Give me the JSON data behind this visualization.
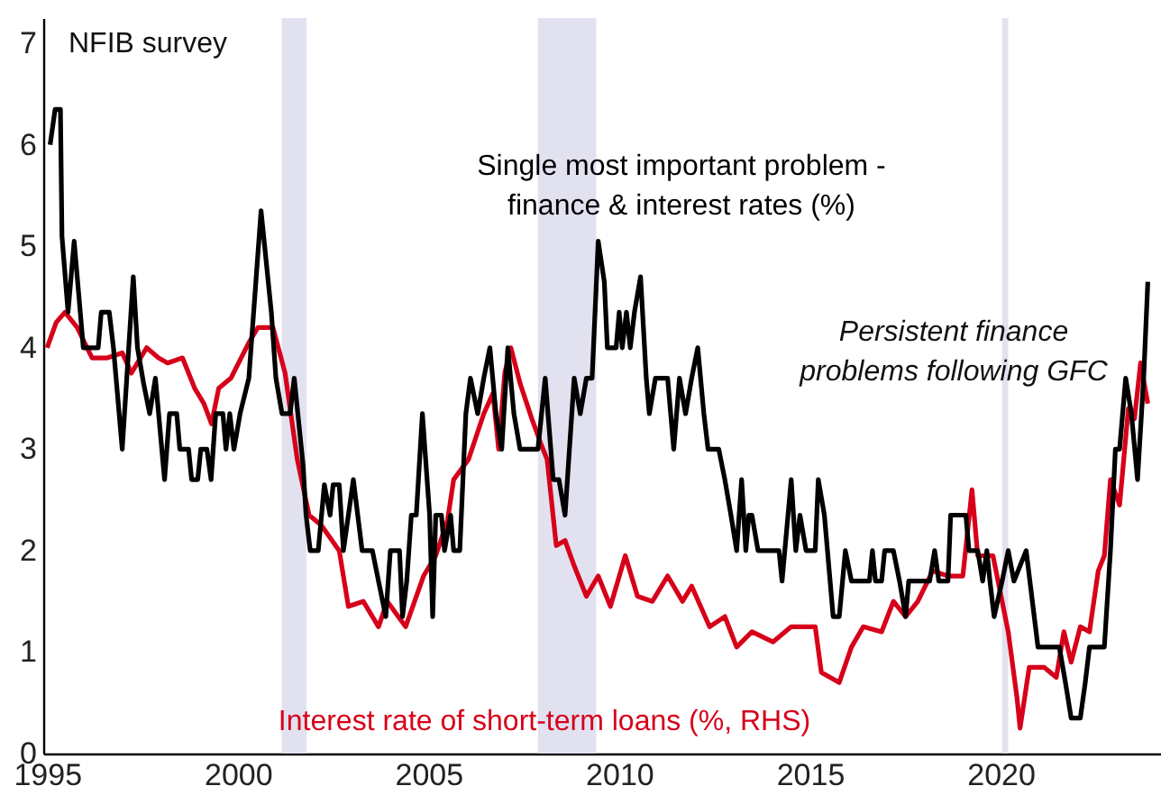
{
  "chart_data": {
    "type": "line",
    "title": "NFIB survey",
    "xlim": [
      1994.9,
      2024.3
    ],
    "xticks": [
      1995,
      2000,
      2005,
      2010,
      2015,
      2020
    ],
    "ylim": [
      0,
      7.25
    ],
    "yticks": [
      0,
      1,
      2,
      3,
      4,
      5,
      6,
      7
    ],
    "annotations": [
      "Persistent finance problems following GFC"
    ],
    "bands": [
      {
        "axis": "x",
        "from": 2001.15,
        "to": 2001.8,
        "color": "#e1e1f0"
      },
      {
        "axis": "x",
        "from": 2007.87,
        "to": 2009.4,
        "color": "#e1e1f0"
      },
      {
        "axis": "x",
        "from": 2020.04,
        "to": 2020.2,
        "color": "#e1e1f0"
      }
    ],
    "series": [
      {
        "name": "Interest rate of short-term loans (%, RHS)",
        "color": "#d7001a",
        "x": [
          1995.0,
          1995.24,
          1995.47,
          1995.79,
          1996.18,
          1996.58,
          1996.97,
          1997.21,
          1997.61,
          1997.92,
          1998.16,
          1998.55,
          1998.87,
          1999.11,
          1999.31,
          1999.5,
          1999.82,
          2000.29,
          2000.53,
          2000.92,
          2001.24,
          2001.56,
          2001.87,
          2002.19,
          2002.66,
          2002.9,
          2003.29,
          2003.69,
          2003.92,
          2004.4,
          2004.87,
          2005.19,
          2005.5,
          2005.66,
          2006.05,
          2006.45,
          2006.69,
          2006.84,
          2007.0,
          2007.16,
          2007.4,
          2007.71,
          2007.95,
          2008.11,
          2008.35,
          2008.58,
          2008.82,
          2009.14,
          2009.45,
          2009.77,
          2010.16,
          2010.48,
          2010.87,
          2011.27,
          2011.66,
          2011.9,
          2012.37,
          2012.77,
          2013.08,
          2013.48,
          2014.03,
          2014.51,
          2015.14,
          2015.3,
          2015.77,
          2016.09,
          2016.4,
          2016.88,
          2017.19,
          2017.51,
          2017.83,
          2018.22,
          2018.62,
          2019.01,
          2019.25,
          2019.4,
          2019.8,
          2020.2,
          2020.43,
          2020.51,
          2020.75,
          2021.14,
          2021.46,
          2021.66,
          2021.85,
          2022.09,
          2022.33,
          2022.56,
          2022.72,
          2022.88,
          2023.12,
          2023.35,
          2023.51,
          2023.67,
          2023.86
        ],
        "values": [
          4.0,
          4.25,
          4.35,
          4.2,
          3.9,
          3.9,
          3.95,
          3.75,
          4.0,
          3.9,
          3.85,
          3.9,
          3.6,
          3.45,
          3.25,
          3.6,
          3.7,
          4.05,
          4.2,
          4.2,
          3.75,
          2.9,
          2.35,
          2.25,
          2.0,
          1.45,
          1.5,
          1.25,
          1.5,
          1.25,
          1.75,
          1.95,
          2.3,
          2.7,
          2.9,
          3.35,
          3.55,
          3.0,
          3.75,
          4.0,
          3.65,
          3.3,
          3.05,
          2.9,
          2.05,
          2.1,
          1.85,
          1.55,
          1.75,
          1.45,
          1.95,
          1.55,
          1.5,
          1.75,
          1.5,
          1.65,
          1.25,
          1.35,
          1.05,
          1.2,
          1.1,
          1.25,
          1.25,
          0.8,
          0.7,
          1.05,
          1.25,
          1.2,
          1.5,
          1.35,
          1.5,
          1.8,
          1.75,
          1.75,
          2.6,
          1.95,
          1.95,
          1.2,
          0.55,
          0.25,
          0.85,
          0.85,
          0.75,
          1.2,
          0.9,
          1.25,
          1.2,
          1.8,
          1.95,
          2.7,
          2.45,
          3.4,
          3.3,
          3.85,
          3.45
        ]
      },
      {
        "name": "Single most important problem - finance & interest rates (%)",
        "color": "#000000",
        "x": [
          1995.08,
          1995.21,
          1995.35,
          1995.39,
          1995.55,
          1995.71,
          1995.95,
          1996.34,
          1996.42,
          1996.63,
          1996.74,
          1996.97,
          1997.26,
          1997.37,
          1997.53,
          1997.69,
          1997.84,
          1998.08,
          1998.21,
          1998.4,
          1998.48,
          1998.71,
          1998.79,
          1998.95,
          1999.03,
          1999.19,
          1999.3,
          1999.42,
          1999.61,
          1999.69,
          1999.79,
          1999.9,
          2000.06,
          2000.29,
          2000.61,
          2000.88,
          2001.0,
          2001.16,
          2001.37,
          2001.48,
          2001.71,
          2001.79,
          2001.9,
          2002.11,
          2002.27,
          2002.42,
          2002.5,
          2002.66,
          2002.77,
          2003.03,
          2003.26,
          2003.53,
          2003.69,
          2003.88,
          2004.0,
          2004.24,
          2004.32,
          2004.43,
          2004.55,
          2004.68,
          2004.84,
          2005.03,
          2005.11,
          2005.19,
          2005.34,
          2005.42,
          2005.58,
          2005.66,
          2005.82,
          2005.98,
          2006.1,
          2006.29,
          2006.45,
          2006.61,
          2006.77,
          2006.92,
          2007.08,
          2007.24,
          2007.4,
          2007.87,
          2008.06,
          2008.27,
          2008.42,
          2008.58,
          2008.82,
          2008.98,
          2009.14,
          2009.29,
          2009.45,
          2009.61,
          2009.69,
          2009.92,
          2010.0,
          2010.08,
          2010.19,
          2010.29,
          2010.4,
          2010.56,
          2010.71,
          2010.79,
          2010.95,
          2011.27,
          2011.43,
          2011.58,
          2011.74,
          2011.9,
          2012.06,
          2012.22,
          2012.33,
          2012.61,
          2012.77,
          2012.93,
          2013.08,
          2013.21,
          2013.32,
          2013.4,
          2013.48,
          2013.64,
          2014.19,
          2014.27,
          2014.51,
          2014.63,
          2014.74,
          2014.9,
          2015.14,
          2015.22,
          2015.38,
          2015.53,
          2015.61,
          2015.77,
          2015.93,
          2016.09,
          2016.56,
          2016.64,
          2016.72,
          2016.88,
          2016.96,
          2017.19,
          2017.35,
          2017.51,
          2017.59,
          2018.14,
          2018.27,
          2018.38,
          2018.62,
          2018.69,
          2019.09,
          2019.17,
          2019.4,
          2019.53,
          2019.64,
          2019.72,
          2019.83,
          2020.04,
          2020.2,
          2020.35,
          2020.67,
          2020.98,
          2021.54,
          2021.7,
          2021.85,
          2022.09,
          2022.22,
          2022.33,
          2022.72,
          2022.88,
          2023.01,
          2023.12,
          2023.28,
          2023.43,
          2023.59,
          2023.75,
          2023.86
        ],
        "values": [
          6.0,
          6.35,
          6.35,
          5.1,
          4.35,
          5.05,
          4.0,
          4.0,
          4.35,
          4.35,
          4.0,
          3.0,
          4.7,
          4.0,
          3.65,
          3.35,
          3.7,
          2.7,
          3.35,
          3.35,
          3.0,
          3.0,
          2.7,
          2.7,
          3.0,
          3.0,
          2.7,
          3.35,
          3.35,
          3.0,
          3.35,
          3.0,
          3.35,
          3.7,
          5.35,
          4.35,
          3.7,
          3.35,
          3.35,
          3.7,
          2.85,
          2.35,
          2.0,
          2.0,
          2.65,
          2.35,
          2.65,
          2.65,
          2.0,
          2.7,
          2.0,
          2.0,
          1.7,
          1.35,
          2.0,
          2.0,
          1.35,
          1.7,
          2.35,
          2.35,
          3.35,
          2.35,
          1.35,
          2.35,
          2.35,
          2.0,
          2.35,
          2.0,
          2.0,
          3.35,
          3.7,
          3.35,
          3.7,
          4.0,
          3.35,
          3.0,
          4.0,
          3.35,
          3.0,
          3.0,
          3.7,
          2.7,
          2.7,
          2.35,
          3.7,
          3.35,
          3.7,
          3.7,
          5.05,
          4.65,
          4.0,
          4.0,
          4.35,
          4.0,
          4.35,
          4.0,
          4.35,
          4.7,
          3.7,
          3.35,
          3.7,
          3.7,
          3.0,
          3.7,
          3.35,
          3.7,
          4.0,
          3.35,
          3.0,
          3.0,
          2.7,
          2.35,
          2.0,
          2.7,
          2.0,
          2.35,
          2.35,
          2.0,
          2.0,
          1.7,
          2.7,
          2.0,
          2.35,
          2.0,
          2.0,
          2.7,
          2.35,
          1.7,
          1.35,
          1.35,
          2.0,
          1.7,
          1.7,
          2.0,
          1.7,
          1.7,
          2.0,
          2.0,
          1.7,
          1.35,
          1.7,
          1.7,
          2.0,
          1.7,
          1.7,
          2.35,
          2.35,
          2.0,
          2.0,
          1.7,
          2.0,
          1.7,
          1.35,
          1.7,
          2.0,
          1.7,
          2.0,
          1.05,
          1.05,
          0.7,
          0.35,
          0.35,
          0.7,
          1.05,
          1.05,
          2.0,
          3.0,
          3.0,
          3.7,
          3.35,
          2.7,
          3.7,
          4.65
        ]
      }
    ]
  }
}
